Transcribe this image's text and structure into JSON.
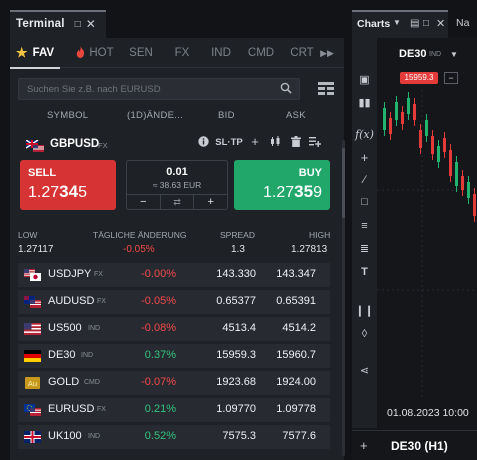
{
  "terminal": {
    "title": "Terminal",
    "tabs": [
      {
        "label": "FAV",
        "icon": "star-icon"
      },
      {
        "label": "HOT",
        "icon": "fire-icon"
      },
      {
        "label": "SEN"
      },
      {
        "label": "FX"
      },
      {
        "label": "IND"
      },
      {
        "label": "CMD"
      },
      {
        "label": "CRT"
      }
    ],
    "search_placeholder": "Suchen Sie z.B. nach EURUSD",
    "columns": {
      "symbol": "SYMBOL",
      "change": "(1D)ÄNDE...",
      "bid": "BID",
      "ask": "ASK"
    },
    "selected": {
      "symbol": "GBPUSD",
      "type": "FX",
      "sltp": "SL·TP",
      "sell_label": "SELL",
      "sell_price_pre": "1.27",
      "sell_price_big": "34",
      "sell_price_post": "5",
      "buy_label": "BUY",
      "buy_price_pre": "1.27",
      "buy_price_big": "35",
      "buy_price_post": "9",
      "quantity": "0.01",
      "quantity_value": "≈ 38.63 EUR",
      "stats_labels": {
        "low": "LOW",
        "change": "TÄGLICHE ÄNDERUNG",
        "spread": "SPREAD",
        "high": "HIGH"
      },
      "stats": {
        "low": "1.27117",
        "change": "-0.05%",
        "spread": "1.3",
        "high": "1.27813"
      }
    },
    "watchlist": [
      {
        "name": "USDJPY",
        "type": "FX",
        "change": "-0.00%",
        "bid": "143.330",
        "ask": "143.347",
        "dir": "neg",
        "flag": "us-jp-flag"
      },
      {
        "name": "AUDUSD",
        "type": "FX",
        "change": "-0.05%",
        "bid": "0.65377",
        "ask": "0.65391",
        "dir": "neg",
        "flag": "au-us-flag"
      },
      {
        "name": "US500",
        "type": "IND",
        "change": "-0.08%",
        "bid": "4513.4",
        "ask": "4514.2",
        "dir": "neg",
        "flag": "us-flag"
      },
      {
        "name": "DE30",
        "type": "IND",
        "change": "0.37%",
        "bid": "15959.3",
        "ask": "15960.7",
        "dir": "pos",
        "flag": "de-flag"
      },
      {
        "name": "GOLD",
        "type": "CMD",
        "change": "-0.07%",
        "bid": "1923.68",
        "ask": "1924.00",
        "dir": "neg",
        "flag": "gold-icon"
      },
      {
        "name": "EURUSD",
        "type": "FX",
        "change": "0.21%",
        "bid": "1.09770",
        "ask": "1.09778",
        "dir": "pos",
        "flag": "eu-us-flag"
      },
      {
        "name": "UK100",
        "type": "IND",
        "change": "0.52%",
        "bid": "7575.3",
        "ask": "7577.6",
        "dir": "pos",
        "flag": "uk-flag"
      }
    ]
  },
  "charts": {
    "title": "Charts",
    "second_tab": "Na",
    "symbol": "DE30",
    "symbol_type": "IND",
    "price_tag": "15959.3",
    "minus": "−",
    "date_label": "01.08.2023 10:00",
    "footer_label": "DE30 (H1)"
  },
  "colors": {
    "sell": "#d63434",
    "buy": "#22a76a",
    "negative": "#f24a4a",
    "positive": "#33c47e"
  }
}
